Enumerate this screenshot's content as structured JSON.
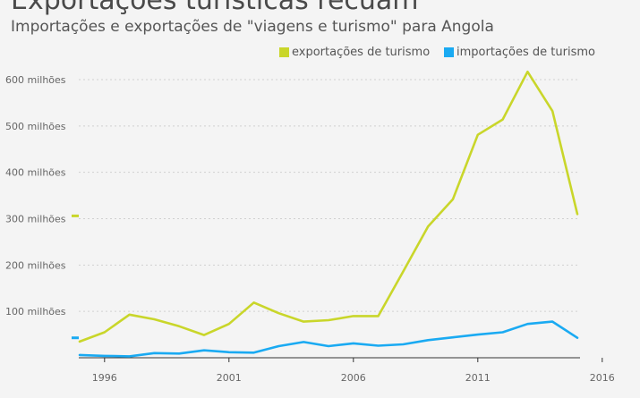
{
  "chart_data": {
    "type": "line",
    "title": "Exportações turísticas recuam",
    "subtitle": "Importações e exportações de \"viagens e turismo\" para Angola",
    "x": [
      1995,
      1996,
      1997,
      1998,
      1999,
      2000,
      2001,
      2002,
      2003,
      2004,
      2005,
      2006,
      2007,
      2008,
      2009,
      2010,
      2011,
      2012,
      2013,
      2014,
      2015
    ],
    "series": [
      {
        "name": "exportações de turismo",
        "color": "#c9d62a",
        "values": [
          35,
          55,
          93,
          83,
          68,
          49,
          73,
          119,
          96,
          78,
          81,
          90,
          90,
          186,
          283,
          342,
          481,
          514,
          617,
          532,
          310
        ]
      },
      {
        "name": "importações de turismo",
        "color": "#1aaaf2",
        "values": [
          6,
          4,
          3,
          10,
          9,
          16,
          12,
          11,
          25,
          34,
          25,
          31,
          26,
          29,
          38,
          44,
          50,
          55,
          73,
          78,
          43
        ]
      }
    ],
    "xticks": [
      {
        "value": 1996,
        "label": "1996"
      },
      {
        "value": 2001,
        "label": "2001"
      },
      {
        "value": 2006,
        "label": "2006"
      },
      {
        "value": 2011,
        "label": "2011"
      },
      {
        "value": 2016,
        "label": "2016"
      }
    ],
    "yticks": [
      {
        "value": 100,
        "label": "100 milhões"
      },
      {
        "value": 200,
        "label": "200 milhões"
      },
      {
        "value": 300,
        "label": "300 milhões"
      },
      {
        "value": 400,
        "label": "400 milhões"
      },
      {
        "value": 500,
        "label": "500 milhões"
      },
      {
        "value": 600,
        "label": "600 milhões"
      }
    ],
    "ylim": [
      0,
      650
    ],
    "grid": "horizontal-dotted",
    "legend_position": "top-right"
  }
}
